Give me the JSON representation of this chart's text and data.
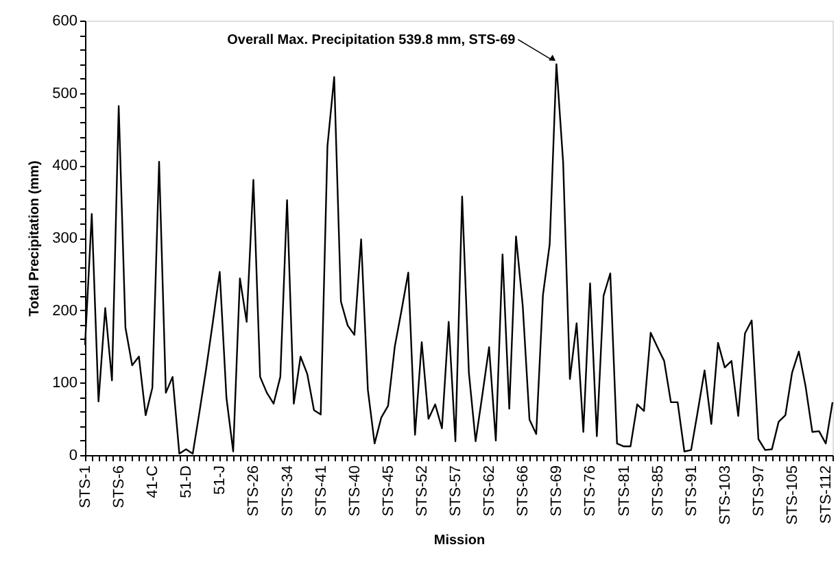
{
  "chart_data": {
    "type": "line",
    "xlabel": "Mission",
    "ylabel": "Total Precipitation (mm)",
    "categories": [
      "STS-1",
      null,
      null,
      null,
      null,
      "STS-6",
      null,
      null,
      null,
      null,
      "41-C",
      null,
      null,
      null,
      null,
      "51-D",
      null,
      null,
      null,
      null,
      "51-J",
      null,
      null,
      null,
      null,
      "STS-26",
      null,
      null,
      null,
      null,
      "STS-34",
      null,
      null,
      null,
      null,
      "STS-41",
      null,
      null,
      null,
      null,
      "STS-40",
      null,
      null,
      null,
      null,
      "STS-45",
      null,
      null,
      null,
      null,
      "STS-52",
      null,
      null,
      null,
      null,
      "STS-57",
      null,
      null,
      null,
      null,
      "STS-62",
      null,
      null,
      null,
      null,
      "STS-66",
      null,
      null,
      null,
      null,
      "STS-69",
      null,
      null,
      null,
      null,
      "STS-76",
      null,
      null,
      null,
      null,
      "STS-81",
      null,
      null,
      null,
      null,
      "STS-85",
      null,
      null,
      null,
      null,
      "STS-91",
      null,
      null,
      null,
      null,
      "STS-103",
      null,
      null,
      null,
      null,
      "STS-97",
      null,
      null,
      null,
      null,
      "STS-105",
      null,
      null,
      null,
      null,
      "STS-112",
      null
    ],
    "series": [
      {
        "color": "#000000",
        "values": [
          152,
          333,
          74,
          203,
          103,
          482,
          176,
          124,
          136,
          55,
          93,
          405,
          86,
          108,
          2,
          8,
          2,
          60,
          120,
          185,
          253,
          79,
          5,
          244,
          184,
          380,
          108,
          86,
          71,
          108,
          352,
          71,
          136,
          112,
          62,
          56,
          427,
          522,
          212,
          179,
          166,
          298,
          90,
          16,
          52,
          68,
          150,
          200,
          252,
          28,
          156,
          50,
          70,
          37,
          184,
          19,
          357,
          114,
          19,
          83,
          149,
          20,
          277,
          64,
          302,
          206,
          49,
          29,
          221,
          291,
          539.8,
          404,
          105,
          182,
          32,
          237,
          26,
          220,
          251,
          16,
          12,
          12,
          70,
          61,
          169,
          149,
          130,
          73,
          73,
          5,
          7,
          61,
          117,
          43,
          155,
          121,
          130,
          54,
          168,
          186,
          22,
          7,
          8,
          46,
          55,
          114,
          143,
          95,
          32,
          33,
          16,
          73
        ]
      }
    ],
    "ylim": [
      0,
      600
    ],
    "yticks": [
      0,
      {
        "value": 20,
        "label": null
      },
      {
        "value": 40,
        "label": null
      },
      {
        "value": 60,
        "label": null
      },
      {
        "value": 80,
        "label": null
      },
      100,
      {
        "value": 120,
        "label": null
      },
      {
        "value": 140,
        "label": null
      },
      {
        "value": 160,
        "label": null
      },
      {
        "value": 180,
        "label": null
      },
      200,
      {
        "value": 220,
        "label": null
      },
      {
        "value": 240,
        "label": null
      },
      {
        "value": 260,
        "label": null
      },
      {
        "value": 280,
        "label": null
      },
      300,
      {
        "value": 320,
        "label": null
      },
      {
        "value": 340,
        "label": null
      },
      {
        "value": 360,
        "label": null
      },
      {
        "value": 380,
        "label": null
      },
      400,
      {
        "value": 420,
        "label": null
      },
      {
        "value": 440,
        "label": null
      },
      {
        "value": 460,
        "label": null
      },
      {
        "value": 480,
        "label": null
      },
      500,
      {
        "value": 520,
        "label": null
      },
      {
        "value": 540,
        "label": null
      },
      {
        "value": 560,
        "label": null
      },
      {
        "value": 580,
        "label": null
      },
      600
    ],
    "annotations": [
      {
        "text": "Overall Max. Precipitation 539.8 mm, STS-69",
        "x": "STS-69",
        "y": 539.8
      }
    ],
    "grid": false,
    "marker": "none",
    "line_style": "solid"
  }
}
